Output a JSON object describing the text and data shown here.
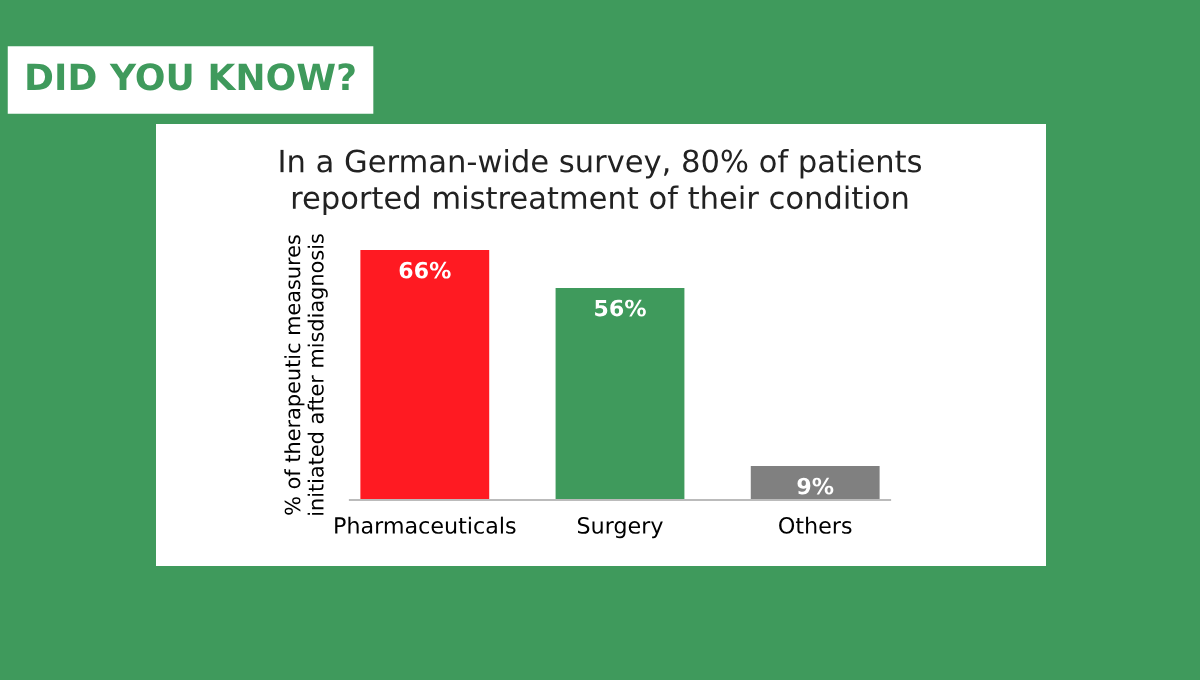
{
  "chart_data": {
    "type": "bar",
    "title": "In a German-wide survey, 80% of patients\nreported mistreatment of their condition",
    "ylabel": "% of therapeutic measures\ninitiated after misdiagnosis",
    "categories": [
      "Pharmaceuticals",
      "Surgery",
      "Others"
    ],
    "values": [
      66,
      56,
      9
    ],
    "colors": [
      "#ff1a22",
      "#3f9a5c",
      "#808080"
    ],
    "value_labels": [
      "66%",
      "56%",
      "9%"
    ],
    "annotations": [
      "DID YOU KNOW?"
    ]
  }
}
